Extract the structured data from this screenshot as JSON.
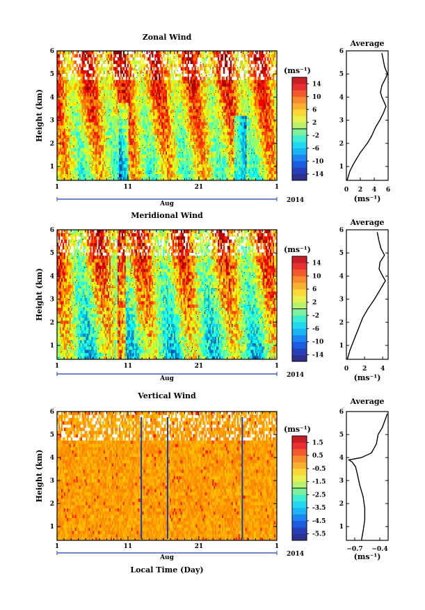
{
  "figure": {
    "xlabel": "Local Time (Day)",
    "month_label": "Aug",
    "year_label": "2014",
    "x_ticks": [
      "1",
      "11",
      "21",
      "1"
    ]
  },
  "chart_data": [
    {
      "type": "heatmap",
      "title": "Zonal Wind",
      "ylabel": "Height (km)",
      "y_ticks": [
        "1",
        "2",
        "3",
        "4",
        "5",
        "6"
      ],
      "ylim": [
        0.4,
        6
      ],
      "colorbar": {
        "unit": "(ms⁻¹)",
        "labels": [
          "14",
          "10",
          "6",
          "2",
          "-2",
          "-6",
          "-10",
          "-14"
        ],
        "range": [
          -16,
          16
        ]
      },
      "average": {
        "title": "Average",
        "xlabel": "(ms⁻¹)",
        "x_ticks": [
          "0",
          "2",
          "4",
          "6"
        ],
        "xlim": [
          0,
          6
        ],
        "profile": [
          [
            0.1,
            0.4
          ],
          [
            0.5,
            0.8
          ],
          [
            1.0,
            1.1
          ],
          [
            2.0,
            1.6
          ],
          [
            3.0,
            2.0
          ],
          [
            3.6,
            2.3
          ],
          [
            4.2,
            2.7
          ],
          [
            4.8,
            3.0
          ],
          [
            5.3,
            3.3
          ],
          [
            5.7,
            3.6
          ],
          [
            5.4,
            3.8
          ],
          [
            5.1,
            4.0
          ],
          [
            4.9,
            4.2
          ],
          [
            5.1,
            4.5
          ],
          [
            5.6,
            4.8
          ],
          [
            5.9,
            5.0
          ],
          [
            5.5,
            5.3
          ],
          [
            5.3,
            5.6
          ],
          [
            5.1,
            5.9
          ]
        ]
      }
    },
    {
      "type": "heatmap",
      "title": "Meridional Wind",
      "ylabel": "Height (km)",
      "y_ticks": [
        "1",
        "2",
        "3",
        "4",
        "5",
        "6"
      ],
      "ylim": [
        0.4,
        6
      ],
      "colorbar": {
        "unit": "(ms⁻¹)",
        "labels": [
          "14",
          "10",
          "6",
          "2",
          "-2",
          "-6",
          "-10",
          "-14"
        ],
        "range": [
          -16,
          16
        ]
      },
      "average": {
        "title": "Average",
        "xlabel": "(ms⁻¹)",
        "x_ticks": [
          "0",
          "2",
          "4"
        ],
        "xlim": [
          0,
          4.6
        ],
        "profile": [
          [
            0.1,
            0.4
          ],
          [
            0.4,
            0.8
          ],
          [
            0.8,
            1.2
          ],
          [
            1.3,
            1.7
          ],
          [
            1.8,
            2.2
          ],
          [
            2.4,
            2.6
          ],
          [
            3.1,
            3.0
          ],
          [
            3.7,
            3.4
          ],
          [
            4.3,
            3.8
          ],
          [
            4.0,
            4.0
          ],
          [
            3.6,
            4.3
          ],
          [
            3.7,
            4.6
          ],
          [
            4.2,
            4.9
          ],
          [
            3.8,
            5.2
          ],
          [
            3.6,
            5.5
          ],
          [
            3.4,
            5.9
          ]
        ]
      }
    },
    {
      "type": "heatmap",
      "title": "Vertical Wind",
      "ylabel": "Height (km)",
      "y_ticks": [
        "1",
        "2",
        "3",
        "4",
        "5",
        "6"
      ],
      "ylim": [
        0.4,
        6
      ],
      "colorbar": {
        "unit": "(ms⁻¹)",
        "labels": [
          "1.5",
          "0.5",
          "-0.5",
          "-1.5",
          "-2.5",
          "-3.5",
          "-4.5",
          "-5.5"
        ],
        "range": [
          -6,
          2
        ]
      },
      "average": {
        "title": "Average",
        "xlabel": "(ms⁻¹)",
        "x_ticks": [
          "−0.7",
          "−0.4"
        ],
        "xlim": [
          -0.8,
          -0.3
        ],
        "profile": [
          [
            -0.62,
            0.4
          ],
          [
            -0.6,
            0.8
          ],
          [
            -0.58,
            1.3
          ],
          [
            -0.58,
            1.8
          ],
          [
            -0.6,
            2.3
          ],
          [
            -0.64,
            2.8
          ],
          [
            -0.67,
            3.3
          ],
          [
            -0.69,
            3.6
          ],
          [
            -0.73,
            3.8
          ],
          [
            -0.77,
            3.9
          ],
          [
            -0.62,
            4.0
          ],
          [
            -0.5,
            4.2
          ],
          [
            -0.44,
            4.6
          ],
          [
            -0.42,
            5.0
          ],
          [
            -0.37,
            5.3
          ],
          [
            -0.34,
            5.6
          ],
          [
            -0.31,
            5.9
          ]
        ]
      }
    }
  ]
}
